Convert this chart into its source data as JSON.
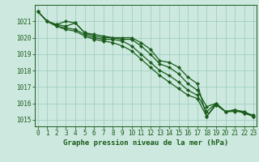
{
  "title": "Graphe pression niveau de la mer (hPa)",
  "bg_color": "#cce8df",
  "grid_color": "#99ccbb",
  "line_color": "#1a5c1a",
  "x_ticks": [
    0,
    1,
    2,
    3,
    4,
    5,
    6,
    7,
    8,
    9,
    10,
    11,
    12,
    13,
    14,
    15,
    16,
    17,
    18,
    19,
    20,
    21,
    22,
    23
  ],
  "y_ticks": [
    1015,
    1016,
    1017,
    1018,
    1019,
    1020,
    1021
  ],
  "ylim": [
    1014.6,
    1022.0
  ],
  "xlim": [
    -0.3,
    23.3
  ],
  "series": [
    [
      1021.6,
      1021.0,
      1020.8,
      1021.0,
      1020.9,
      1020.3,
      1020.2,
      1020.1,
      1020.0,
      1020.0,
      1020.0,
      1019.7,
      1019.3,
      1018.6,
      1018.5,
      1018.2,
      1017.6,
      1017.2,
      1015.2,
      1015.9,
      1015.5,
      1015.6,
      1015.4,
      1015.3
    ],
    [
      1021.6,
      1021.0,
      1020.8,
      1020.7,
      1020.9,
      1020.3,
      1020.1,
      1020.0,
      1020.0,
      1019.9,
      1019.9,
      1019.5,
      1019.0,
      1018.4,
      1018.2,
      1017.8,
      1017.2,
      1016.8,
      1015.8,
      1016.0,
      1015.5,
      1015.6,
      1015.5,
      1015.2
    ],
    [
      1021.6,
      1021.0,
      1020.7,
      1020.6,
      1020.5,
      1020.2,
      1020.0,
      1019.9,
      1019.9,
      1019.8,
      1019.5,
      1019.0,
      1018.5,
      1018.0,
      1017.7,
      1017.3,
      1016.8,
      1016.5,
      1015.5,
      1016.0,
      1015.5,
      1015.6,
      1015.4,
      1015.2
    ],
    [
      1021.6,
      1021.0,
      1020.7,
      1020.5,
      1020.4,
      1020.1,
      1019.9,
      1019.8,
      1019.7,
      1019.5,
      1019.2,
      1018.7,
      1018.2,
      1017.7,
      1017.3,
      1016.9,
      1016.5,
      1016.3,
      1015.2,
      1016.0,
      1015.5,
      1015.5,
      1015.5,
      1015.2
    ]
  ],
  "title_fontsize": 6.5,
  "tick_fontsize": 5.5,
  "linewidth": 0.9,
  "markersize": 2.2
}
